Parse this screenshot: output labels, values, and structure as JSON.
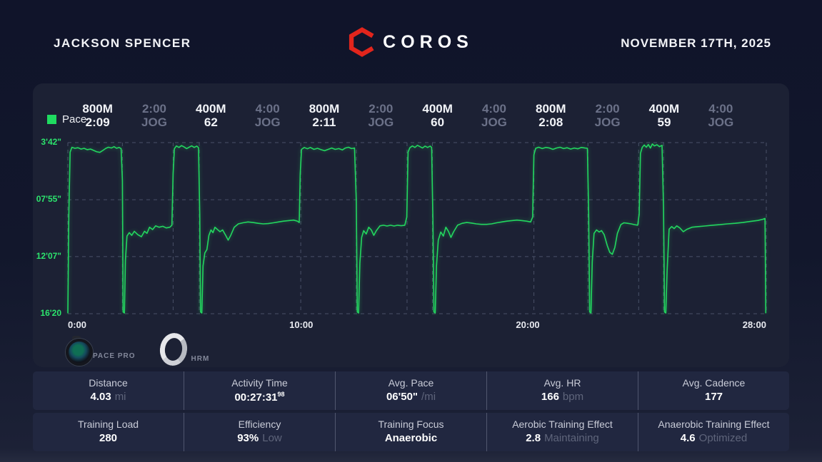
{
  "header": {
    "athlete_name": "JACKSON SPENCER",
    "brand": "COROS",
    "date": "NOVEMBER 17TH, 2025"
  },
  "legend": {
    "label": "Pace",
    "color": "#1fdb60"
  },
  "devices": [
    {
      "id": "pace-pro-watch",
      "label": "PACE PRO"
    },
    {
      "id": "hrm-band",
      "label": "HRM"
    }
  ],
  "colors": {
    "background": "#11152a",
    "card": "#1c2134",
    "accent_green": "#23d75f",
    "brand_red": "#e2251c",
    "jog_gray": "#6b7188",
    "grid": "#4a5168"
  },
  "chart_data": {
    "type": "line",
    "title": "Pace",
    "legend_position": "top-left",
    "grid": "dashed",
    "x_range_min": [
      0,
      27.53
    ],
    "y_range": [
      3.7,
      16.3333
    ],
    "y_ticks": [
      {
        "label": "3'42\"",
        "value": 3.7
      },
      {
        "label": "07'55\"",
        "value": 7.9167
      },
      {
        "label": "12'07\"",
        "value": 12.1167
      },
      {
        "label": "16'20",
        "value": 16.3333
      }
    ],
    "x_ticks": [
      "0:00",
      "10:00",
      "20:00",
      "28:00"
    ],
    "interval_boundaries_min": [
      2.15,
      4.15,
      5.18,
      9.18,
      11.37,
      13.37,
      14.37,
      18.37,
      20.5,
      22.5,
      23.48
    ],
    "intervals": [
      {
        "line1": "800M",
        "line2": "2:09",
        "type": "work"
      },
      {
        "line1": "2:00",
        "line2": "JOG",
        "type": "jog"
      },
      {
        "line1": "400M",
        "line2": "62",
        "type": "work"
      },
      {
        "line1": "4:00",
        "line2": "JOG",
        "type": "jog"
      },
      {
        "line1": "800M",
        "line2": "2:11",
        "type": "work"
      },
      {
        "line1": "2:00",
        "line2": "JOG",
        "type": "jog"
      },
      {
        "line1": "400M",
        "line2": "60",
        "type": "work"
      },
      {
        "line1": "4:00",
        "line2": "JOG",
        "type": "jog"
      },
      {
        "line1": "800M",
        "line2": "2:08",
        "type": "work"
      },
      {
        "line1": "2:00",
        "line2": "JOG",
        "type": "jog"
      },
      {
        "line1": "400M",
        "line2": "59",
        "type": "work"
      },
      {
        "line1": "4:00",
        "line2": "JOG",
        "type": "jog"
      }
    ],
    "points": [
      [
        0.0,
        16.3
      ],
      [
        0.04,
        9.0
      ],
      [
        0.09,
        4.4
      ],
      [
        0.16,
        4.05
      ],
      [
        0.28,
        4.12
      ],
      [
        0.4,
        4.08
      ],
      [
        0.52,
        4.18
      ],
      [
        0.64,
        4.12
      ],
      [
        0.76,
        4.22
      ],
      [
        0.9,
        4.18
      ],
      [
        1.02,
        4.28
      ],
      [
        1.14,
        4.38
      ],
      [
        1.26,
        4.42
      ],
      [
        1.38,
        4.28
      ],
      [
        1.5,
        4.12
      ],
      [
        1.6,
        4.04
      ],
      [
        1.72,
        4.1
      ],
      [
        1.82,
        4.0
      ],
      [
        1.92,
        4.12
      ],
      [
        2.02,
        4.06
      ],
      [
        2.1,
        4.14
      ],
      [
        2.15,
        6.5
      ],
      [
        2.18,
        16.2
      ],
      [
        2.23,
        16.28
      ],
      [
        2.27,
        12.4
      ],
      [
        2.33,
        10.6
      ],
      [
        2.42,
        10.35
      ],
      [
        2.52,
        10.55
      ],
      [
        2.62,
        10.25
      ],
      [
        2.76,
        10.5
      ],
      [
        2.9,
        10.65
      ],
      [
        3.02,
        10.25
      ],
      [
        3.12,
        10.4
      ],
      [
        3.22,
        9.95
      ],
      [
        3.34,
        10.12
      ],
      [
        3.46,
        9.85
      ],
      [
        3.6,
        9.95
      ],
      [
        3.74,
        9.88
      ],
      [
        3.88,
        10.0
      ],
      [
        4.02,
        9.95
      ],
      [
        4.1,
        9.8
      ],
      [
        4.15,
        6.0
      ],
      [
        4.2,
        4.15
      ],
      [
        4.28,
        3.95
      ],
      [
        4.38,
        4.06
      ],
      [
        4.48,
        3.92
      ],
      [
        4.58,
        4.02
      ],
      [
        4.68,
        4.14
      ],
      [
        4.78,
        4.04
      ],
      [
        4.88,
        3.94
      ],
      [
        4.98,
        4.06
      ],
      [
        5.08,
        3.96
      ],
      [
        5.15,
        4.08
      ],
      [
        5.2,
        9.0
      ],
      [
        5.23,
        16.2
      ],
      [
        5.28,
        16.28
      ],
      [
        5.33,
        12.8
      ],
      [
        5.4,
        11.85
      ],
      [
        5.48,
        11.6
      ],
      [
        5.56,
        10.55
      ],
      [
        5.64,
        10.15
      ],
      [
        5.72,
        10.35
      ],
      [
        5.8,
        9.95
      ],
      [
        5.9,
        10.12
      ],
      [
        6.0,
        10.28
      ],
      [
        6.1,
        10.15
      ],
      [
        6.22,
        10.55
      ],
      [
        6.32,
        10.9
      ],
      [
        6.42,
        10.55
      ],
      [
        6.56,
        9.95
      ],
      [
        6.72,
        9.7
      ],
      [
        6.9,
        9.62
      ],
      [
        7.1,
        9.56
      ],
      [
        7.3,
        9.6
      ],
      [
        7.5,
        9.66
      ],
      [
        7.7,
        9.7
      ],
      [
        7.9,
        9.68
      ],
      [
        8.1,
        9.62
      ],
      [
        8.3,
        9.56
      ],
      [
        8.5,
        9.5
      ],
      [
        8.7,
        9.46
      ],
      [
        8.9,
        9.42
      ],
      [
        9.05,
        9.5
      ],
      [
        9.12,
        9.6
      ],
      [
        9.16,
        6.0
      ],
      [
        9.21,
        4.2
      ],
      [
        9.32,
        4.06
      ],
      [
        9.44,
        4.16
      ],
      [
        9.56,
        4.06
      ],
      [
        9.7,
        4.2
      ],
      [
        9.84,
        4.12
      ],
      [
        9.98,
        4.22
      ],
      [
        10.12,
        4.3
      ],
      [
        10.26,
        4.2
      ],
      [
        10.4,
        4.1
      ],
      [
        10.54,
        4.2
      ],
      [
        10.68,
        4.14
      ],
      [
        10.82,
        4.24
      ],
      [
        10.94,
        4.1
      ],
      [
        11.06,
        4.04
      ],
      [
        11.18,
        4.14
      ],
      [
        11.3,
        4.1
      ],
      [
        11.37,
        8.0
      ],
      [
        11.41,
        16.2
      ],
      [
        11.46,
        16.28
      ],
      [
        11.51,
        12.6
      ],
      [
        11.58,
        10.7
      ],
      [
        11.66,
        10.2
      ],
      [
        11.76,
        10.45
      ],
      [
        11.86,
        9.95
      ],
      [
        11.96,
        10.15
      ],
      [
        12.06,
        10.55
      ],
      [
        12.16,
        10.2
      ],
      [
        12.3,
        9.85
      ],
      [
        12.44,
        9.8
      ],
      [
        12.58,
        9.86
      ],
      [
        12.72,
        9.8
      ],
      [
        12.86,
        9.86
      ],
      [
        13.0,
        9.8
      ],
      [
        13.14,
        9.84
      ],
      [
        13.28,
        9.8
      ],
      [
        13.36,
        9.2
      ],
      [
        13.41,
        4.4
      ],
      [
        13.48,
        4.08
      ],
      [
        13.58,
        3.95
      ],
      [
        13.68,
        4.06
      ],
      [
        13.78,
        3.9
      ],
      [
        13.88,
        4.0
      ],
      [
        13.98,
        4.1
      ],
      [
        14.08,
        3.96
      ],
      [
        14.18,
        4.06
      ],
      [
        14.28,
        3.96
      ],
      [
        14.34,
        4.06
      ],
      [
        14.39,
        9.5
      ],
      [
        14.43,
        16.2
      ],
      [
        14.48,
        16.28
      ],
      [
        14.53,
        12.8
      ],
      [
        14.6,
        10.9
      ],
      [
        14.7,
        10.3
      ],
      [
        14.8,
        10.6
      ],
      [
        14.9,
        9.95
      ],
      [
        15.0,
        10.25
      ],
      [
        15.1,
        10.7
      ],
      [
        15.2,
        10.3
      ],
      [
        15.36,
        9.8
      ],
      [
        15.54,
        9.66
      ],
      [
        15.72,
        9.6
      ],
      [
        15.9,
        9.64
      ],
      [
        16.1,
        9.7
      ],
      [
        16.3,
        9.74
      ],
      [
        16.5,
        9.74
      ],
      [
        16.7,
        9.7
      ],
      [
        16.9,
        9.62
      ],
      [
        17.1,
        9.56
      ],
      [
        17.3,
        9.5
      ],
      [
        17.5,
        9.46
      ],
      [
        17.7,
        9.42
      ],
      [
        17.9,
        9.46
      ],
      [
        18.08,
        9.5
      ],
      [
        18.24,
        9.56
      ],
      [
        18.32,
        9.2
      ],
      [
        18.37,
        4.6
      ],
      [
        18.44,
        4.12
      ],
      [
        18.56,
        4.04
      ],
      [
        18.7,
        4.14
      ],
      [
        18.84,
        4.06
      ],
      [
        18.98,
        4.1
      ],
      [
        19.12,
        4.2
      ],
      [
        19.26,
        4.1
      ],
      [
        19.4,
        4.04
      ],
      [
        19.54,
        4.14
      ],
      [
        19.68,
        4.08
      ],
      [
        19.82,
        4.18
      ],
      [
        19.96,
        4.1
      ],
      [
        20.1,
        4.16
      ],
      [
        20.24,
        4.06
      ],
      [
        20.38,
        4.1
      ],
      [
        20.48,
        4.12
      ],
      [
        20.53,
        9.0
      ],
      [
        20.57,
        16.2
      ],
      [
        20.62,
        16.28
      ],
      [
        20.67,
        12.5
      ],
      [
        20.74,
        10.4
      ],
      [
        20.84,
        10.15
      ],
      [
        20.94,
        10.3
      ],
      [
        21.04,
        10.2
      ],
      [
        21.14,
        10.5
      ],
      [
        21.26,
        11.3
      ],
      [
        21.36,
        11.8
      ],
      [
        21.46,
        11.95
      ],
      [
        21.56,
        11.45
      ],
      [
        21.66,
        10.4
      ],
      [
        21.8,
        9.75
      ],
      [
        21.92,
        9.62
      ],
      [
        22.06,
        9.66
      ],
      [
        22.2,
        9.7
      ],
      [
        22.34,
        9.76
      ],
      [
        22.46,
        9.8
      ],
      [
        22.52,
        9.0
      ],
      [
        22.57,
        4.5
      ],
      [
        22.64,
        4.05
      ],
      [
        22.72,
        3.88
      ],
      [
        22.8,
        4.04
      ],
      [
        22.88,
        3.84
      ],
      [
        22.96,
        4.1
      ],
      [
        23.04,
        3.8
      ],
      [
        23.12,
        3.95
      ],
      [
        23.22,
        3.86
      ],
      [
        23.32,
        4.0
      ],
      [
        23.42,
        3.9
      ],
      [
        23.48,
        8.5
      ],
      [
        23.52,
        16.2
      ],
      [
        23.57,
        16.28
      ],
      [
        23.62,
        13.2
      ],
      [
        23.7,
        10.1
      ],
      [
        23.8,
        9.9
      ],
      [
        23.9,
        10.05
      ],
      [
        24.0,
        9.85
      ],
      [
        24.12,
        10.0
      ],
      [
        24.26,
        10.28
      ],
      [
        24.4,
        10.1
      ],
      [
        24.6,
        9.95
      ],
      [
        24.85,
        9.9
      ],
      [
        25.1,
        9.86
      ],
      [
        25.4,
        9.8
      ],
      [
        25.7,
        9.76
      ],
      [
        26.0,
        9.7
      ],
      [
        26.3,
        9.66
      ],
      [
        26.6,
        9.6
      ],
      [
        26.9,
        9.52
      ],
      [
        27.2,
        9.45
      ],
      [
        27.4,
        9.36
      ],
      [
        27.48,
        9.3
      ],
      [
        27.51,
        16.3
      ]
    ]
  },
  "stats": {
    "rows": [
      [
        {
          "label": "Distance",
          "value": "4.03",
          "unit": "mi"
        },
        {
          "label": "Activity Time",
          "value": "00:27:31",
          "sup": "98"
        },
        {
          "label": "Avg. Pace",
          "value": "06'50\"",
          "unit": "/mi"
        },
        {
          "label": "Avg. HR",
          "value": "166",
          "unit": "bpm"
        },
        {
          "label": "Avg. Cadence",
          "value": "177"
        }
      ],
      [
        {
          "label": "Training Load",
          "value": "280"
        },
        {
          "label": "Efficiency",
          "value": "93%",
          "unit": "Low"
        },
        {
          "label": "Training Focus",
          "value": "Anaerobic"
        },
        {
          "label": "Aerobic Training Effect",
          "value": "2.8",
          "unit": "Maintaining"
        },
        {
          "label": "Anaerobic Training Effect",
          "value": "4.6",
          "unit": "Optimized"
        }
      ]
    ]
  }
}
